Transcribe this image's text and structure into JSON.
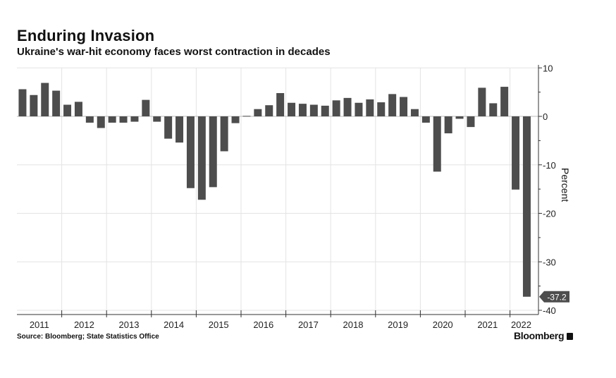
{
  "header": {
    "title": "Enduring Invasion",
    "subtitle": "Ukraine's war-hit economy faces worst contraction in decades"
  },
  "footer": {
    "source": "Source: Bloomberg; State Statistics Office",
    "brand": "Bloomberg"
  },
  "colors": {
    "bar": "#4d4d4d",
    "grid": "#e3e3e3",
    "axis": "#333333",
    "callout_bg": "#4d4d4d",
    "callout_text": "#ffffff"
  },
  "chart_data": {
    "type": "bar",
    "title": "Enduring Invasion",
    "subtitle": "Ukraine's war-hit economy faces worst contraction in decades",
    "xlabel": "",
    "ylabel": "Percent",
    "ylim": [
      -40,
      10
    ],
    "yticks": [
      "10",
      "0",
      "-10",
      "-20",
      "-30",
      "-40"
    ],
    "ytick_values": [
      10,
      0,
      -10,
      -20,
      -30,
      -40
    ],
    "axis_side": "right",
    "grid": true,
    "year_labels": [
      "2011",
      "2012",
      "2013",
      "2014",
      "2015",
      "2016",
      "2017",
      "2018",
      "2019",
      "2020",
      "2021",
      "2022"
    ],
    "categories": [
      "2011Q1",
      "2011Q2",
      "2011Q3",
      "2011Q4",
      "2012Q1",
      "2012Q2",
      "2012Q3",
      "2012Q4",
      "2013Q1",
      "2013Q2",
      "2013Q3",
      "2013Q4",
      "2014Q1",
      "2014Q2",
      "2014Q3",
      "2014Q4",
      "2015Q1",
      "2015Q2",
      "2015Q3",
      "2015Q4",
      "2016Q1",
      "2016Q2",
      "2016Q3",
      "2016Q4",
      "2017Q1",
      "2017Q2",
      "2017Q3",
      "2017Q4",
      "2018Q1",
      "2018Q2",
      "2018Q3",
      "2018Q4",
      "2019Q1",
      "2019Q2",
      "2019Q3",
      "2019Q4",
      "2020Q1",
      "2020Q2",
      "2020Q3",
      "2020Q4",
      "2021Q1",
      "2021Q2",
      "2021Q3",
      "2021Q4",
      "2022Q1",
      "2022Q2"
    ],
    "values": [
      5.6,
      4.4,
      6.9,
      5.3,
      2.4,
      3.0,
      -1.3,
      -2.4,
      -1.3,
      -1.3,
      -1.1,
      3.4,
      -1.1,
      -4.6,
      -5.4,
      -14.8,
      -17.2,
      -14.6,
      -7.2,
      -1.4,
      0.1,
      1.5,
      2.3,
      4.8,
      2.8,
      2.6,
      2.4,
      2.2,
      3.3,
      3.8,
      2.8,
      3.5,
      2.9,
      4.6,
      4.0,
      1.5,
      -1.3,
      -11.4,
      -3.5,
      -0.5,
      -2.2,
      5.9,
      2.7,
      6.1,
      -15.1,
      -37.2
    ],
    "callout": {
      "label": "-37.2",
      "value": -37.2
    }
  }
}
